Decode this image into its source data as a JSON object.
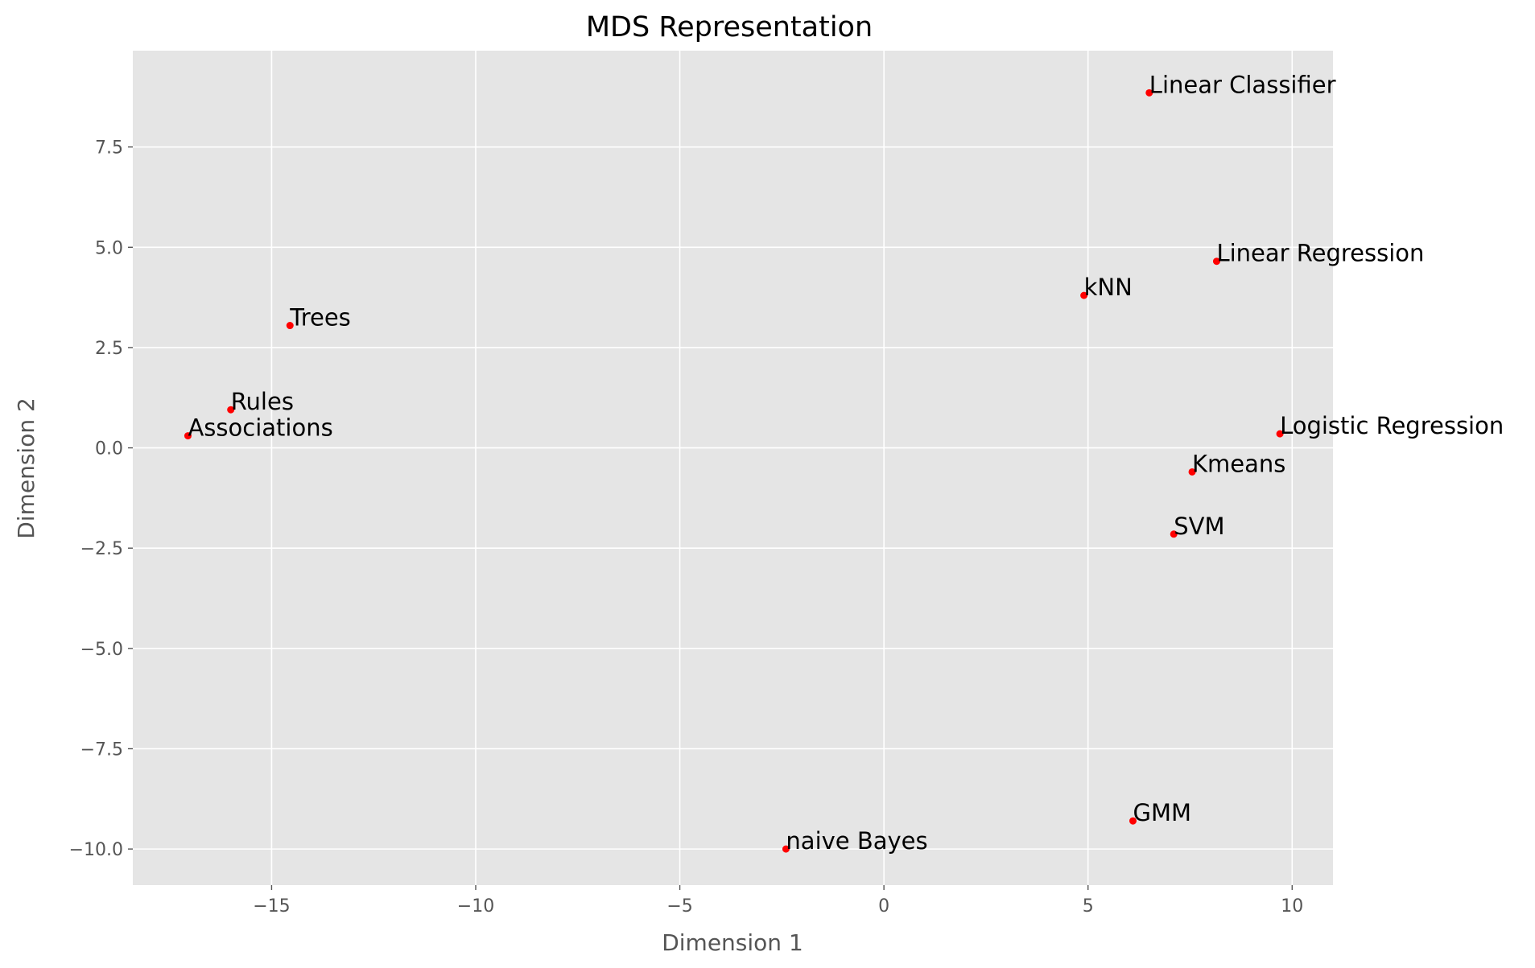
{
  "chart_data": {
    "type": "scatter",
    "title": "MDS Representation",
    "xlabel": "Dimension 1",
    "ylabel": "Dimension 2",
    "xlim": [
      -18.4,
      11.0
    ],
    "ylim": [
      -10.9,
      9.9
    ],
    "xticks": [
      -15,
      -10,
      -5,
      0,
      5,
      10
    ],
    "xtick_labels": [
      "−15",
      "−10",
      "−5",
      "0",
      "5",
      "10"
    ],
    "yticks": [
      -10.0,
      -7.5,
      -5.0,
      -2.5,
      0.0,
      2.5,
      5.0,
      7.5
    ],
    "ytick_labels": [
      "−10.0",
      "−7.5",
      "−5.0",
      "−2.5",
      "0.0",
      "2.5",
      "5.0",
      "7.5"
    ],
    "grid": true,
    "background": "#e5e5e5",
    "grid_color": "#ffffff",
    "marker_color": "#ff0000",
    "points": [
      {
        "label": "Linear Classifier",
        "x": 6.5,
        "y": 8.85
      },
      {
        "label": "Linear Regression",
        "x": 8.15,
        "y": 4.65
      },
      {
        "label": "kNN",
        "x": 4.9,
        "y": 3.8
      },
      {
        "label": "Trees",
        "x": -14.55,
        "y": 3.05
      },
      {
        "label": "Rules",
        "x": -16.0,
        "y": 0.95
      },
      {
        "label": "Associations",
        "x": -17.05,
        "y": 0.3
      },
      {
        "label": "Logistic Regression",
        "x": 9.7,
        "y": 0.35
      },
      {
        "label": "Kmeans",
        "x": 7.55,
        "y": -0.6
      },
      {
        "label": "SVM",
        "x": 7.1,
        "y": -2.15
      },
      {
        "label": "GMM",
        "x": 6.1,
        "y": -9.3
      },
      {
        "label": "naive Bayes",
        "x": -2.4,
        "y": -10.0
      }
    ]
  }
}
